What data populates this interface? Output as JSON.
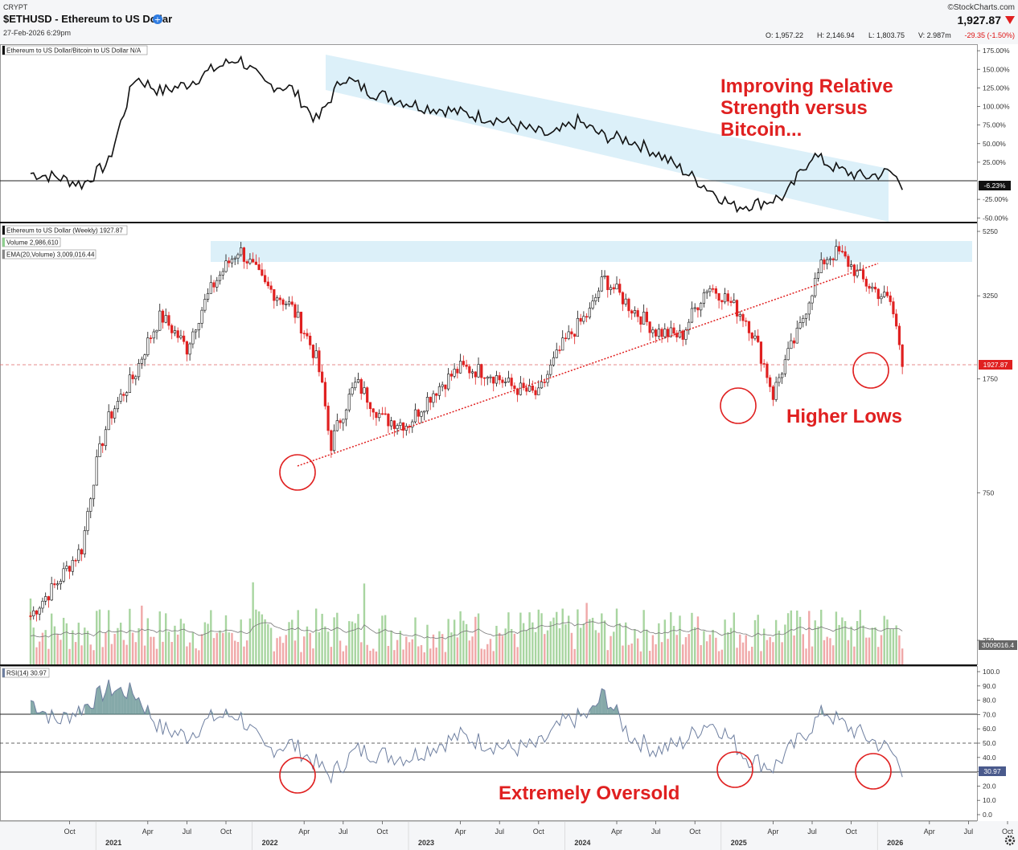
{
  "header": {
    "exchange": "CRYPT",
    "symbol_title": "$ETHUSD - Ethereum to US Dollar",
    "date": "27-Feb-2026 6:29pm",
    "brand": "©StockCharts.com",
    "last_price": "1,927.87",
    "ohlc": {
      "open": "O: 1,957.22",
      "high": "H: 2,146.94",
      "low": "L: 1,803.75",
      "volume": "V: 2.987m",
      "change": "-29.35 (-1.50%)"
    },
    "down_color": "#e02020"
  },
  "panels": {
    "ratio": {
      "label": "Ethereum to US Dollar/Bitcoin to US Dollar N/A",
      "current_tag": "-6.23%",
      "ticks": [
        "175.00%",
        "150.00%",
        "125.00%",
        "100.00%",
        "75.00%",
        "50.00%",
        "25.00%",
        "-25.00%",
        "-50.00%"
      ]
    },
    "price": {
      "label_main": "Ethereum to US Dollar (Weekly) 1927.87",
      "label_volume": "Volume 2,986,610",
      "label_ema": "EMA(20,Volume) 3,009,016.44",
      "current_tag": "1927.87",
      "volume_tag": "3009016.4",
      "ticks": [
        "5250",
        "3250",
        "1750",
        "750",
        "250"
      ]
    },
    "rsi": {
      "label": "RSI(14) 30.97",
      "current_tag": "30.97",
      "ticks": [
        "100.0",
        "90.0",
        "80.0",
        "70.0",
        "60.0",
        "50.0",
        "40.0",
        "30.0",
        "20.0",
        "10.0",
        "0.0"
      ]
    }
  },
  "time_axis": {
    "months": [
      "Oct",
      "Apr",
      "Jul",
      "Oct",
      "Apr",
      "Jul",
      "Oct",
      "Apr",
      "Jul",
      "Oct",
      "Apr",
      "Jul",
      "Oct",
      "Apr",
      "Jul",
      "Oct",
      "Apr",
      "Jul",
      "Oct"
    ],
    "years": [
      "2021",
      "2022",
      "2023",
      "2024",
      "2025",
      "2026"
    ]
  },
  "annotations": {
    "relative_strength": [
      "Improving Relative",
      "Strength versus",
      "Bitcoin..."
    ],
    "higher_lows": "Higher Lows",
    "oversold": "Extremely Oversold"
  },
  "chart_data": {
    "type": "line",
    "x_range": [
      "2020-07",
      "2026-10"
    ],
    "series": [
      {
        "name": "Ethereum to US Dollar/Bitcoin to US Dollar",
        "unit": "%",
        "x": [
          "2020-07",
          "2020-09",
          "2020-11",
          "2021-01",
          "2021-03",
          "2021-05",
          "2021-07",
          "2021-09",
          "2021-11",
          "2022-01",
          "2022-03",
          "2022-05",
          "2022-07",
          "2022-09",
          "2022-11",
          "2023-01",
          "2023-03",
          "2023-05",
          "2023-07",
          "2023-09",
          "2023-11",
          "2024-01",
          "2024-03",
          "2024-05",
          "2024-07",
          "2024-09",
          "2024-11",
          "2025-01",
          "2025-03",
          "2025-05",
          "2025-07",
          "2025-09",
          "2025-11",
          "2026-01",
          "2026-02"
        ],
        "values": [
          10,
          5,
          -5,
          25,
          140,
          120,
          130,
          150,
          165,
          130,
          125,
          80,
          140,
          120,
          110,
          100,
          95,
          88,
          82,
          70,
          60,
          80,
          60,
          55,
          38,
          15,
          -10,
          -35,
          -30,
          -20,
          35,
          15,
          5,
          12,
          -6.23
        ]
      },
      {
        "name": "Ethereum to US Dollar (Weekly)",
        "unit": "USD",
        "x": [
          "2020-07",
          "2020-09",
          "2020-11",
          "2021-01",
          "2021-03",
          "2021-05",
          "2021-07",
          "2021-09",
          "2021-11",
          "2022-01",
          "2022-03",
          "2022-05",
          "2022-06",
          "2022-08",
          "2022-10",
          "2022-12",
          "2023-02",
          "2023-04",
          "2023-06",
          "2023-08",
          "2023-10",
          "2023-12",
          "2024-02",
          "2024-03",
          "2024-05",
          "2024-07",
          "2024-09",
          "2024-11",
          "2024-12",
          "2025-02",
          "2025-04",
          "2025-06",
          "2025-08",
          "2025-09",
          "2025-11",
          "2026-01",
          "2026-02"
        ],
        "values": [
          300,
          380,
          500,
          1300,
          1800,
          2800,
          2200,
          3500,
          4600,
          3500,
          3000,
          2000,
          1050,
          1700,
          1300,
          1250,
          1600,
          1900,
          1850,
          1650,
          1550,
          2300,
          2900,
          3700,
          3000,
          2500,
          2400,
          3500,
          3300,
          2700,
          1550,
          2500,
          4300,
          4500,
          3600,
          3100,
          1927.87
        ]
      },
      {
        "name": "RSI(14)",
        "x": [
          "2020-07",
          "2020-09",
          "2020-11",
          "2021-01",
          "2021-03",
          "2021-05",
          "2021-07",
          "2021-09",
          "2021-11",
          "2022-01",
          "2022-03",
          "2022-05",
          "2022-06",
          "2022-08",
          "2022-10",
          "2022-12",
          "2023-02",
          "2023-04",
          "2023-06",
          "2023-08",
          "2023-10",
          "2023-12",
          "2024-02",
          "2024-03",
          "2024-05",
          "2024-07",
          "2024-09",
          "2024-11",
          "2024-12",
          "2025-02",
          "2025-04",
          "2025-06",
          "2025-08",
          "2025-09",
          "2025-11",
          "2026-01",
          "2026-02"
        ],
        "values": [
          80,
          65,
          75,
          88,
          85,
          60,
          55,
          68,
          70,
          45,
          50,
          35,
          27,
          45,
          42,
          40,
          48,
          55,
          50,
          46,
          48,
          65,
          70,
          85,
          55,
          45,
          50,
          65,
          60,
          40,
          33,
          52,
          73,
          65,
          55,
          45,
          30.97
        ]
      }
    ],
    "reference_lines": {
      "rsi": [
        70,
        50,
        30
      ],
      "ratio": [
        0
      ]
    }
  }
}
